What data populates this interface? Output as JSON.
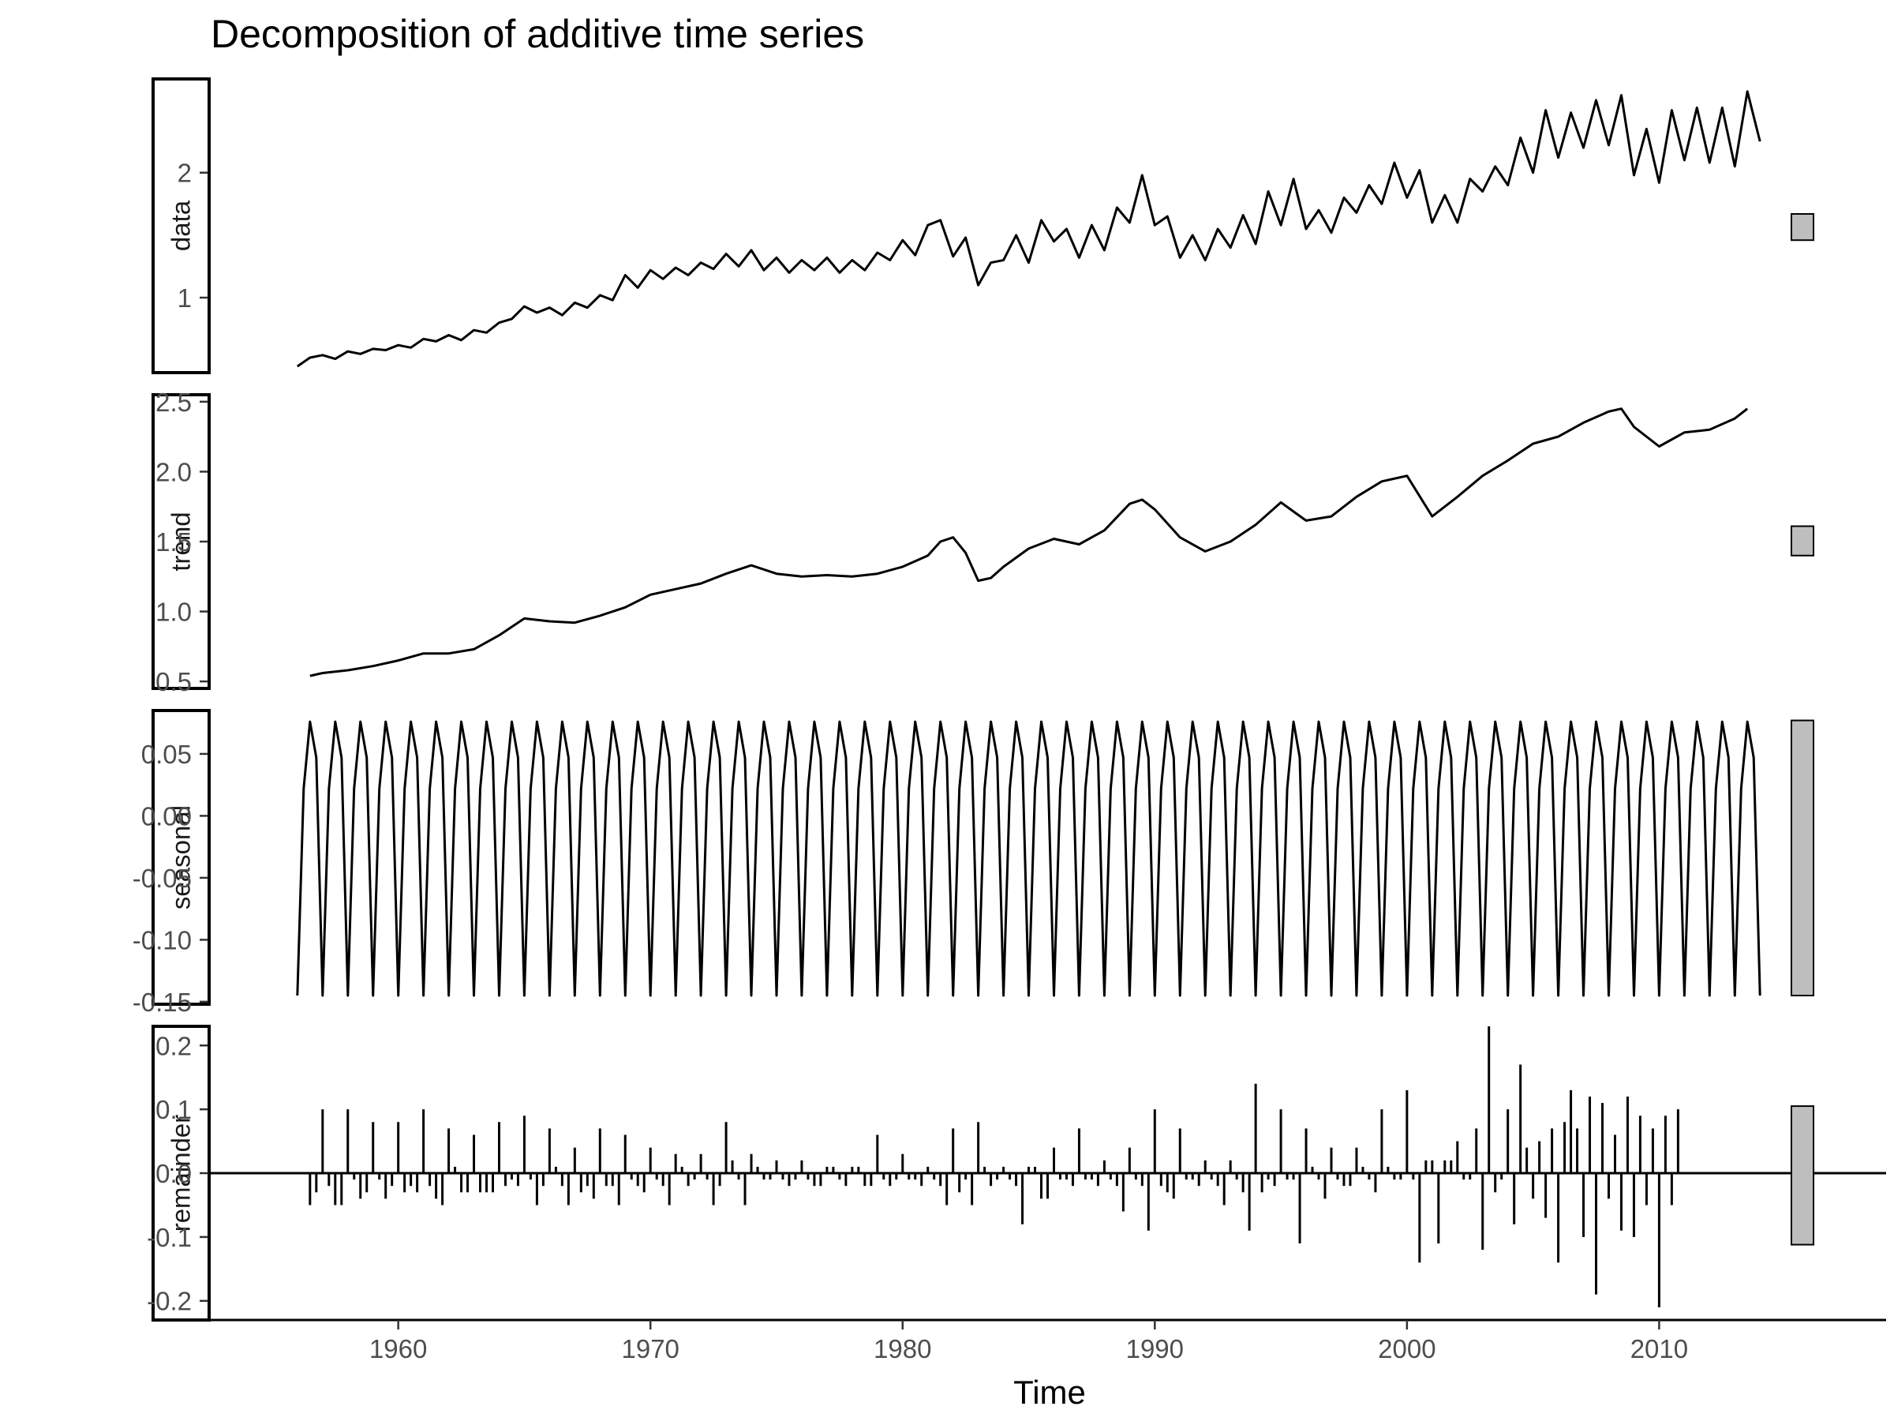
{
  "chart_data": {
    "type": "line",
    "title": "Decomposition of additive time series",
    "xlabel": "Time",
    "xlim": [
      1952.5,
      2019
    ],
    "x_ticks": [
      1960,
      1970,
      1980,
      1990,
      2000,
      2010
    ],
    "colors": {
      "line": "#000000",
      "scale_bar": "#bebebe",
      "strip_border": "#000000"
    },
    "panels": [
      {
        "name": "data",
        "type": "line",
        "ylim": [
          0.4,
          2.75
        ],
        "y_ticks": [
          {
            "value": 1,
            "label": "1"
          },
          {
            "value": 2,
            "label": "2"
          }
        ],
        "scale_bar": [
          1.46,
          1.67
        ],
        "points": [
          [
            1956.0,
            0.45
          ],
          [
            1956.5,
            0.52
          ],
          [
            1957.0,
            0.54
          ],
          [
            1957.5,
            0.51
          ],
          [
            1958.0,
            0.57
          ],
          [
            1958.5,
            0.55
          ],
          [
            1959.0,
            0.59
          ],
          [
            1959.5,
            0.58
          ],
          [
            1960.0,
            0.62
          ],
          [
            1960.5,
            0.6
          ],
          [
            1961.0,
            0.67
          ],
          [
            1961.5,
            0.65
          ],
          [
            1962.0,
            0.7
          ],
          [
            1962.5,
            0.66
          ],
          [
            1963.0,
            0.74
          ],
          [
            1963.5,
            0.72
          ],
          [
            1964.0,
            0.8
          ],
          [
            1964.5,
            0.83
          ],
          [
            1965.0,
            0.93
          ],
          [
            1965.5,
            0.88
          ],
          [
            1966.0,
            0.92
          ],
          [
            1966.5,
            0.86
          ],
          [
            1967.0,
            0.96
          ],
          [
            1967.5,
            0.92
          ],
          [
            1968.0,
            1.02
          ],
          [
            1968.5,
            0.98
          ],
          [
            1969.0,
            1.18
          ],
          [
            1969.5,
            1.08
          ],
          [
            1970.0,
            1.22
          ],
          [
            1970.5,
            1.15
          ],
          [
            1971.0,
            1.24
          ],
          [
            1971.5,
            1.18
          ],
          [
            1972.0,
            1.28
          ],
          [
            1972.5,
            1.23
          ],
          [
            1973.0,
            1.35
          ],
          [
            1973.5,
            1.25
          ],
          [
            1974.0,
            1.38
          ],
          [
            1974.5,
            1.22
          ],
          [
            1975.0,
            1.32
          ],
          [
            1975.5,
            1.2
          ],
          [
            1976.0,
            1.3
          ],
          [
            1976.5,
            1.22
          ],
          [
            1977.0,
            1.32
          ],
          [
            1977.5,
            1.2
          ],
          [
            1978.0,
            1.3
          ],
          [
            1978.5,
            1.22
          ],
          [
            1979.0,
            1.36
          ],
          [
            1979.5,
            1.3
          ],
          [
            1980.0,
            1.46
          ],
          [
            1980.5,
            1.34
          ],
          [
            1981.0,
            1.58
          ],
          [
            1981.5,
            1.62
          ],
          [
            1982.0,
            1.33
          ],
          [
            1982.5,
            1.48
          ],
          [
            1983.0,
            1.1
          ],
          [
            1983.5,
            1.28
          ],
          [
            1984.0,
            1.3
          ],
          [
            1984.5,
            1.5
          ],
          [
            1985.0,
            1.28
          ],
          [
            1985.5,
            1.62
          ],
          [
            1986.0,
            1.45
          ],
          [
            1986.5,
            1.55
          ],
          [
            1987.0,
            1.32
          ],
          [
            1987.5,
            1.58
          ],
          [
            1988.0,
            1.38
          ],
          [
            1988.5,
            1.72
          ],
          [
            1989.0,
            1.6
          ],
          [
            1989.5,
            1.98
          ],
          [
            1990.0,
            1.58
          ],
          [
            1990.5,
            1.65
          ],
          [
            1991.0,
            1.32
          ],
          [
            1991.5,
            1.5
          ],
          [
            1992.0,
            1.3
          ],
          [
            1992.5,
            1.55
          ],
          [
            1993.0,
            1.4
          ],
          [
            1993.5,
            1.66
          ],
          [
            1994.0,
            1.43
          ],
          [
            1994.5,
            1.85
          ],
          [
            1995.0,
            1.58
          ],
          [
            1995.5,
            1.95
          ],
          [
            1996.0,
            1.55
          ],
          [
            1996.5,
            1.7
          ],
          [
            1997.0,
            1.52
          ],
          [
            1997.5,
            1.8
          ],
          [
            1998.0,
            1.68
          ],
          [
            1998.5,
            1.9
          ],
          [
            1999.0,
            1.75
          ],
          [
            1999.5,
            2.08
          ],
          [
            2000.0,
            1.8
          ],
          [
            2000.5,
            2.02
          ],
          [
            2001.0,
            1.6
          ],
          [
            2001.5,
            1.82
          ],
          [
            2002.0,
            1.6
          ],
          [
            2002.5,
            1.95
          ],
          [
            2003.0,
            1.85
          ],
          [
            2003.5,
            2.05
          ],
          [
            2004.0,
            1.9
          ],
          [
            2004.5,
            2.28
          ],
          [
            2005.0,
            2.0
          ],
          [
            2005.5,
            2.5
          ],
          [
            2006.0,
            2.12
          ],
          [
            2006.5,
            2.48
          ],
          [
            2007.0,
            2.2
          ],
          [
            2007.5,
            2.58
          ],
          [
            2008.0,
            2.22
          ],
          [
            2008.5,
            2.62
          ],
          [
            2009.0,
            1.98
          ],
          [
            2009.5,
            2.35
          ],
          [
            2010.0,
            1.92
          ],
          [
            2010.5,
            2.5
          ],
          [
            2011.0,
            2.1
          ],
          [
            2011.5,
            2.52
          ],
          [
            2012.0,
            2.08
          ],
          [
            2012.5,
            2.52
          ],
          [
            2013.0,
            2.05
          ],
          [
            2013.5,
            2.65
          ],
          [
            2014.0,
            2.25
          ]
        ]
      },
      {
        "name": "trend",
        "type": "line",
        "ylim": [
          0.45,
          2.55
        ],
        "y_ticks": [
          {
            "value": 0.5,
            "label": "0.5"
          },
          {
            "value": 1.0,
            "label": "1.0"
          },
          {
            "value": 1.5,
            "label": "1.5"
          },
          {
            "value": 2.0,
            "label": "2.0"
          },
          {
            "value": 2.5,
            "label": "2.5"
          }
        ],
        "scale_bar": [
          1.4,
          1.61
        ],
        "points": [
          [
            1956.5,
            0.54
          ],
          [
            1957,
            0.56
          ],
          [
            1958,
            0.58
          ],
          [
            1959,
            0.61
          ],
          [
            1960,
            0.65
          ],
          [
            1961,
            0.7
          ],
          [
            1962,
            0.7
          ],
          [
            1963,
            0.73
          ],
          [
            1964,
            0.83
          ],
          [
            1965,
            0.95
          ],
          [
            1966,
            0.93
          ],
          [
            1967,
            0.92
          ],
          [
            1968,
            0.97
          ],
          [
            1969,
            1.03
          ],
          [
            1970,
            1.12
          ],
          [
            1971,
            1.16
          ],
          [
            1972,
            1.2
          ],
          [
            1973,
            1.27
          ],
          [
            1974,
            1.33
          ],
          [
            1975,
            1.27
          ],
          [
            1976,
            1.25
          ],
          [
            1977,
            1.26
          ],
          [
            1978,
            1.25
          ],
          [
            1979,
            1.27
          ],
          [
            1980,
            1.32
          ],
          [
            1981,
            1.4
          ],
          [
            1981.5,
            1.5
          ],
          [
            1982,
            1.53
          ],
          [
            1982.5,
            1.42
          ],
          [
            1983,
            1.22
          ],
          [
            1983.5,
            1.24
          ],
          [
            1984,
            1.32
          ],
          [
            1985,
            1.45
          ],
          [
            1986,
            1.52
          ],
          [
            1987,
            1.48
          ],
          [
            1988,
            1.58
          ],
          [
            1989,
            1.77
          ],
          [
            1989.5,
            1.8
          ],
          [
            1990,
            1.73
          ],
          [
            1991,
            1.53
          ],
          [
            1992,
            1.43
          ],
          [
            1993,
            1.5
          ],
          [
            1994,
            1.62
          ],
          [
            1995,
            1.78
          ],
          [
            1996,
            1.65
          ],
          [
            1997,
            1.68
          ],
          [
            1998,
            1.82
          ],
          [
            1999,
            1.93
          ],
          [
            2000,
            1.97
          ],
          [
            2001,
            1.68
          ],
          [
            2002,
            1.82
          ],
          [
            2003,
            1.97
          ],
          [
            2004,
            2.08
          ],
          [
            2005,
            2.2
          ],
          [
            2006,
            2.25
          ],
          [
            2007,
            2.35
          ],
          [
            2008,
            2.43
          ],
          [
            2008.5,
            2.45
          ],
          [
            2009,
            2.32
          ],
          [
            2010,
            2.18
          ],
          [
            2011,
            2.28
          ],
          [
            2012,
            2.3
          ],
          [
            2013,
            2.38
          ],
          [
            2013.5,
            2.45
          ]
        ]
      },
      {
        "name": "seasonal",
        "type": "line",
        "ylim": [
          -0.152,
          0.085
        ],
        "y_ticks": [
          {
            "value": -0.15,
            "label": "-0.15"
          },
          {
            "value": -0.1,
            "label": "-0.10"
          },
          {
            "value": -0.05,
            "label": "-0.05"
          },
          {
            "value": 0.0,
            "label": "0.00"
          },
          {
            "value": 0.05,
            "label": "0.05"
          }
        ],
        "scale_bar": [
          -0.145,
          0.077
        ],
        "pattern": [
          -0.145,
          0.022,
          0.076,
          0.047
        ],
        "x_start": 1956.0,
        "x_end": 2014.0,
        "step": 0.25
      },
      {
        "name": "remainder",
        "type": "bar",
        "ylim": [
          -0.23,
          0.23
        ],
        "y_ticks": [
          {
            "value": -0.2,
            "label": "-0.2"
          },
          {
            "value": -0.1,
            "label": "-0.1"
          },
          {
            "value": 0.0,
            "label": "0.0"
          },
          {
            "value": 0.1,
            "label": "0.1"
          },
          {
            "value": 0.2,
            "label": "0.2"
          }
        ],
        "scale_bar": [
          -0.112,
          0.105
        ],
        "zero_line": true,
        "x_start": 1956.5,
        "step": 0.25,
        "values": [
          -0.05,
          -0.03,
          0.1,
          -0.02,
          -0.05,
          -0.05,
          0.1,
          -0.01,
          -0.04,
          -0.03,
          0.08,
          -0.01,
          -0.04,
          -0.02,
          0.08,
          -0.03,
          -0.02,
          -0.03,
          0.1,
          -0.02,
          -0.04,
          -0.05,
          0.07,
          0.01,
          -0.03,
          -0.03,
          0.06,
          -0.03,
          -0.03,
          -0.03,
          0.08,
          -0.02,
          -0.01,
          -0.02,
          0.09,
          -0.01,
          -0.05,
          -0.02,
          0.07,
          0.01,
          -0.02,
          -0.05,
          0.04,
          -0.03,
          -0.02,
          -0.04,
          0.07,
          -0.02,
          -0.02,
          -0.05,
          0.06,
          -0.01,
          -0.02,
          -0.03,
          0.04,
          -0.01,
          -0.02,
          -0.05,
          0.03,
          0.01,
          -0.02,
          -0.01,
          0.03,
          -0.01,
          -0.05,
          -0.02,
          0.08,
          0.02,
          -0.01,
          -0.05,
          0.03,
          0.01,
          -0.01,
          -0.01,
          0.02,
          -0.01,
          -0.02,
          -0.01,
          0.02,
          -0.01,
          -0.02,
          -0.02,
          0.01,
          0.01,
          -0.01,
          -0.02,
          0.01,
          0.01,
          -0.02,
          -0.02,
          0.06,
          -0.01,
          -0.02,
          -0.01,
          0.03,
          -0.01,
          -0.01,
          -0.02,
          0.01,
          -0.01,
          -0.02,
          -0.05,
          0.07,
          -0.03,
          -0.01,
          -0.05,
          0.08,
          0.01,
          -0.02,
          -0.01,
          0.01,
          -0.01,
          -0.02,
          -0.08,
          0.01,
          0.01,
          -0.04,
          -0.04,
          0.04,
          -0.01,
          -0.01,
          -0.02,
          0.07,
          -0.01,
          -0.01,
          -0.02,
          0.02,
          -0.01,
          -0.02,
          -0.06,
          0.04,
          -0.01,
          -0.02,
          -0.09,
          0.1,
          -0.02,
          -0.03,
          -0.04,
          0.07,
          -0.01,
          -0.01,
          -0.02,
          0.02,
          -0.01,
          -0.02,
          -0.05,
          0.02,
          -0.01,
          -0.03,
          -0.09,
          0.14,
          -0.03,
          -0.01,
          -0.02,
          0.1,
          -0.01,
          -0.01,
          -0.11,
          0.07,
          0.01,
          -0.01,
          -0.04,
          0.04,
          -0.01,
          -0.02,
          -0.02,
          0.04,
          0.01,
          -0.01,
          -0.03,
          0.1,
          0.01,
          -0.01,
          -0.01,
          0.13,
          -0.01,
          -0.14,
          0.02,
          0.02,
          -0.11,
          0.02,
          0.02,
          0.05,
          -0.01,
          -0.01,
          0.07,
          -0.12,
          0.23,
          -0.03,
          -0.01,
          0.1,
          -0.08,
          0.17,
          0.04,
          -0.04,
          0.05,
          -0.07,
          0.07,
          -0.14,
          0.08,
          0.13,
          0.07,
          -0.1,
          0.12,
          -0.19,
          0.11,
          -0.04,
          0.06,
          -0.09,
          0.12,
          -0.1,
          0.09,
          -0.05,
          0.07,
          -0.21,
          0.09,
          -0.05,
          0.1
        ]
      }
    ]
  }
}
